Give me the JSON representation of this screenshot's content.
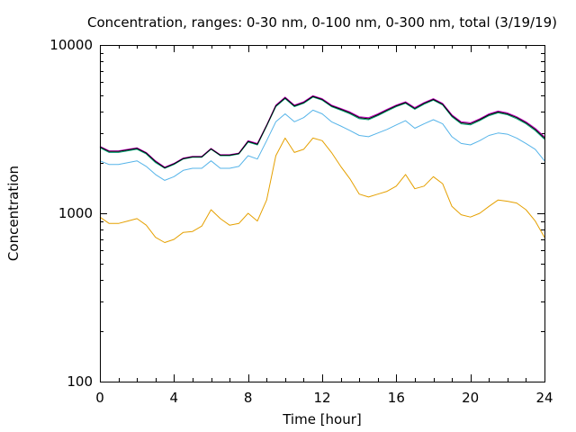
{
  "chart_data": {
    "type": "line",
    "title": "Concentration, ranges: 0-30 nm, 0-100 nm, 0-300 nm, total (3/19/19)",
    "xlabel": "Time [hour]",
    "ylabel": "Concentration",
    "xlim": [
      0,
      24
    ],
    "ylim": [
      100,
      10000
    ],
    "yscale": "log",
    "grid": false,
    "legend": "none",
    "xticks": [
      0,
      4,
      8,
      12,
      16,
      20,
      24
    ],
    "xtick_labels": [
      "0",
      "4",
      "8",
      "12",
      "16",
      "20",
      "24"
    ],
    "yticks": [
      100,
      1000,
      10000
    ],
    "ytick_labels": [
      "100",
      "1000",
      "10000"
    ],
    "x": [
      0,
      0.5,
      1,
      1.5,
      2,
      2.5,
      3,
      3.5,
      4,
      4.5,
      5,
      5.5,
      6,
      6.5,
      7,
      7.5,
      8,
      8.5,
      9,
      9.5,
      10,
      10.5,
      11,
      11.5,
      12,
      12.5,
      13,
      13.5,
      14,
      14.5,
      15,
      15.5,
      16,
      16.5,
      17,
      17.5,
      18,
      18.5,
      19,
      19.5,
      20,
      20.5,
      21,
      21.5,
      22,
      22.5,
      23,
      23.5,
      24
    ],
    "series": [
      {
        "color": "#e5a000",
        "values": [
          950,
          870,
          870,
          900,
          930,
          850,
          720,
          670,
          700,
          770,
          780,
          840,
          1050,
          930,
          850,
          870,
          1000,
          900,
          1200,
          2200,
          2800,
          2300,
          2400,
          2800,
          2700,
          2300,
          1900,
          1600,
          1300,
          1250,
          1300,
          1350,
          1450,
          1700,
          1400,
          1450,
          1650,
          1500,
          1100,
          980,
          950,
          1000,
          1100,
          1200,
          1180,
          1150,
          1050,
          900,
          720
        ]
      },
      {
        "color": "#56b4e9",
        "values": [
          2050,
          1950,
          1950,
          2000,
          2050,
          1900,
          1700,
          1570,
          1650,
          1800,
          1850,
          1850,
          2050,
          1850,
          1850,
          1900,
          2200,
          2100,
          2700,
          3500,
          3900,
          3500,
          3700,
          4100,
          3900,
          3500,
          3300,
          3100,
          2900,
          2850,
          3000,
          3150,
          3350,
          3550,
          3200,
          3400,
          3600,
          3400,
          2850,
          2600,
          2550,
          2700,
          2900,
          3000,
          2950,
          2800,
          2600,
          2400,
          2050
        ]
      },
      {
        "color": "#009e73",
        "values": [
          2450,
          2300,
          2300,
          2350,
          2400,
          2250,
          2000,
          1850,
          1950,
          2100,
          2150,
          2150,
          2400,
          2200,
          2200,
          2250,
          2650,
          2550,
          3300,
          4300,
          4800,
          4300,
          4500,
          4900,
          4700,
          4300,
          4100,
          3900,
          3650,
          3600,
          3800,
          4050,
          4300,
          4500,
          4150,
          4450,
          4700,
          4400,
          3750,
          3400,
          3350,
          3550,
          3800,
          3950,
          3850,
          3650,
          3400,
          3100,
          2750
        ]
      },
      {
        "color": "#c000c0",
        "values": [
          2500,
          2350,
          2350,
          2400,
          2450,
          2300,
          2050,
          1880,
          1980,
          2130,
          2180,
          2180,
          2430,
          2230,
          2230,
          2280,
          2700,
          2600,
          3350,
          4400,
          4900,
          4400,
          4600,
          5000,
          4800,
          4400,
          4200,
          4000,
          3750,
          3700,
          3900,
          4150,
          4400,
          4600,
          4250,
          4550,
          4800,
          4500,
          3850,
          3500,
          3450,
          3650,
          3900,
          4050,
          3950,
          3750,
          3500,
          3200,
          2850
        ]
      },
      {
        "color": "#000000",
        "values": [
          2480,
          2330,
          2330,
          2380,
          2430,
          2280,
          2030,
          1865,
          1965,
          2115,
          2165,
          2165,
          2415,
          2215,
          2215,
          2265,
          2675,
          2575,
          3325,
          4350,
          4850,
          4350,
          4550,
          4950,
          4750,
          4350,
          4150,
          3950,
          3700,
          3650,
          3850,
          4100,
          4350,
          4550,
          4200,
          4500,
          4750,
          4450,
          3800,
          3450,
          3400,
          3600,
          3850,
          4000,
          3900,
          3700,
          3450,
          3150,
          2800
        ]
      }
    ]
  }
}
